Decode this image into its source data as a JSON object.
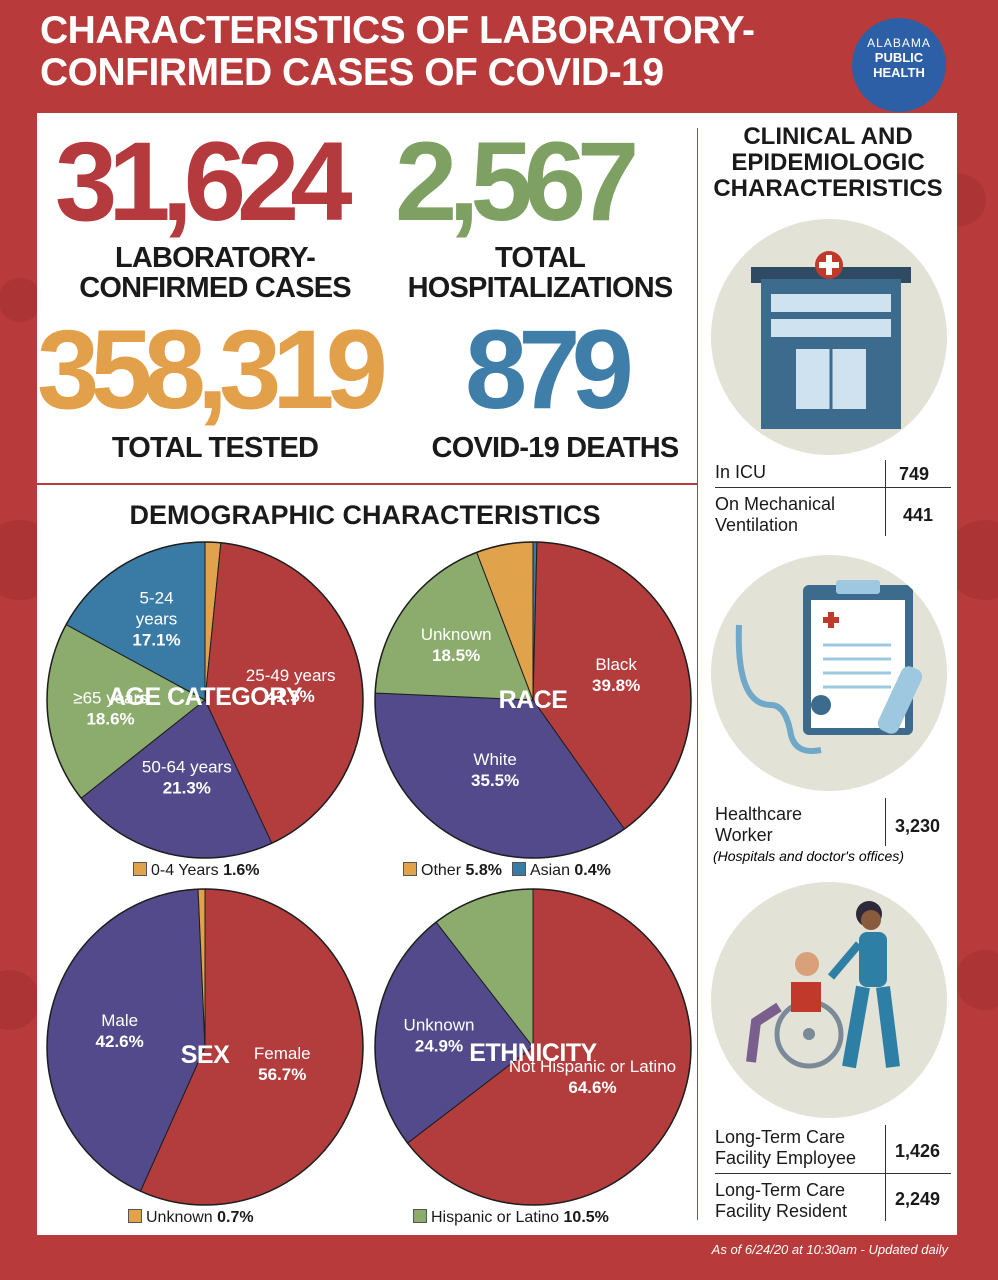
{
  "header": {
    "title_line1": "CHARACTERISTICS OF LABORATORY-",
    "title_line2": "CONFIRMED CASES OF COVID-19",
    "logo_line1": "ALABAMA",
    "logo_line2": "PUBLIC",
    "logo_line3": "HEALTH"
  },
  "totals": [
    {
      "value": "31,624",
      "label_line1": "LABORATORY-",
      "label_line2": "CONFIRMED CASES",
      "color": "#b53a3e"
    },
    {
      "value": "2,567",
      "label_line1": "TOTAL",
      "label_line2": "HOSPITALIZATIONS",
      "color": "#7ea163"
    },
    {
      "value": "358,319",
      "label_line1": "TOTAL TESTED",
      "label_line2": "",
      "color": "#e3a04a"
    },
    {
      "value": "879",
      "label_line1": "COVID-19 DEATHS",
      "label_line2": "",
      "color": "#3f7ea8"
    }
  ],
  "demographic_title": "DEMOGRAPHIC CHARACTERISTICS",
  "colors": {
    "red": "#b33c3c",
    "purple": "#534a8c",
    "green": "#8cac6e",
    "blue": "#3a7ba5",
    "orange": "#e0a24a",
    "bg": "#b93a3a"
  },
  "chart_data": [
    {
      "type": "pie",
      "title": "AGE CATEGORY",
      "slices": [
        {
          "name": "0-4 Years",
          "value": 1.6,
          "color": "#e0a24a",
          "label": [
            "",
            ""
          ]
        },
        {
          "name": "25-49 years",
          "value": 41.5,
          "color": "#b33c3c",
          "label": [
            "25-49 years",
            "41.5%"
          ]
        },
        {
          "name": "50-64 years",
          "value": 21.3,
          "color": "#534a8c",
          "label": [
            "50-64 years",
            "21.3%"
          ]
        },
        {
          "name": "≥65 years",
          "value": 18.6,
          "color": "#8cac6e",
          "label": [
            "≥65 years",
            "18.6%"
          ]
        },
        {
          "name": "5-24 years",
          "value": 17.1,
          "color": "#3a7ba5",
          "label": [
            "5-24",
            "years",
            "17.1%"
          ]
        }
      ],
      "legend": [
        {
          "name": "0-4 Years",
          "value": "1.6%",
          "color": "#e0a24a"
        }
      ]
    },
    {
      "type": "pie",
      "title": "RACE",
      "slices": [
        {
          "name": "Asian",
          "value": 0.4,
          "color": "#3a7ba5",
          "label": [
            "",
            ""
          ]
        },
        {
          "name": "Black",
          "value": 39.8,
          "color": "#b33c3c",
          "label": [
            "Black",
            "39.8%"
          ]
        },
        {
          "name": "White",
          "value": 35.5,
          "color": "#534a8c",
          "label": [
            "White",
            "35.5%"
          ]
        },
        {
          "name": "Unknown",
          "value": 18.5,
          "color": "#8cac6e",
          "label": [
            "Unknown",
            "18.5%"
          ]
        },
        {
          "name": "Other",
          "value": 5.8,
          "color": "#e0a24a",
          "label": [
            "",
            ""
          ]
        }
      ],
      "legend": [
        {
          "name": "Other",
          "value": "5.8%",
          "color": "#e0a24a"
        },
        {
          "name": "Asian",
          "value": "0.4%",
          "color": "#3a7ba5"
        }
      ]
    },
    {
      "type": "pie",
      "title": "SEX",
      "slices": [
        {
          "name": "Female",
          "value": 56.7,
          "color": "#b33c3c",
          "label": [
            "Female",
            "56.7%"
          ]
        },
        {
          "name": "Male",
          "value": 42.6,
          "color": "#534a8c",
          "label": [
            "Male",
            "42.6%"
          ]
        },
        {
          "name": "Unknown",
          "value": 0.7,
          "color": "#e0a24a",
          "label": [
            "",
            ""
          ]
        }
      ],
      "legend": [
        {
          "name": "Unknown",
          "value": "0.7%",
          "color": "#e0a24a"
        }
      ]
    },
    {
      "type": "pie",
      "title": "ETHNICITY",
      "slices": [
        {
          "name": "Not Hispanic or Latino",
          "value": 64.6,
          "color": "#b33c3c",
          "label": [
            "Not Hispanic or Latino",
            "64.6%"
          ]
        },
        {
          "name": "Unknown",
          "value": 24.9,
          "color": "#534a8c",
          "label": [
            "Unknown",
            "24.9%"
          ]
        },
        {
          "name": "Hispanic or Latino",
          "value": 10.5,
          "color": "#8cac6e",
          "label": [
            "",
            ""
          ]
        }
      ],
      "legend": [
        {
          "name": "Hispanic or Latino",
          "value": "10.5%",
          "color": "#8cac6e"
        }
      ]
    }
  ],
  "clinical": {
    "title_line1": "CLINICAL AND",
    "title_line2": "EPIDEMIOLOGIC",
    "title_line3": "CHARACTERISTICS",
    "icu_label": "In ICU",
    "icu_value": "749",
    "vent_label_line1": "On Mechanical",
    "vent_label_line2": "Ventilation",
    "vent_value": "441",
    "hcw_label_line1": "Healthcare",
    "hcw_label_line2": "Worker",
    "hcw_value": "3,230",
    "hcw_note": "(Hospitals and doctor's offices)",
    "ltc_emp_line1": "Long-Term Care",
    "ltc_emp_line2": "Facility Employee",
    "ltc_emp_value": "1,426",
    "ltc_res_line1": "Long-Term Care",
    "ltc_res_line2": "Facility Resident",
    "ltc_res_value": "2,249",
    "icons": [
      "hospital-icon",
      "clipboard-stethoscope-icon",
      "wheelchair-caregiver-icon"
    ]
  },
  "footer": "As of 6/24/20 at 10:30am - Updated daily"
}
